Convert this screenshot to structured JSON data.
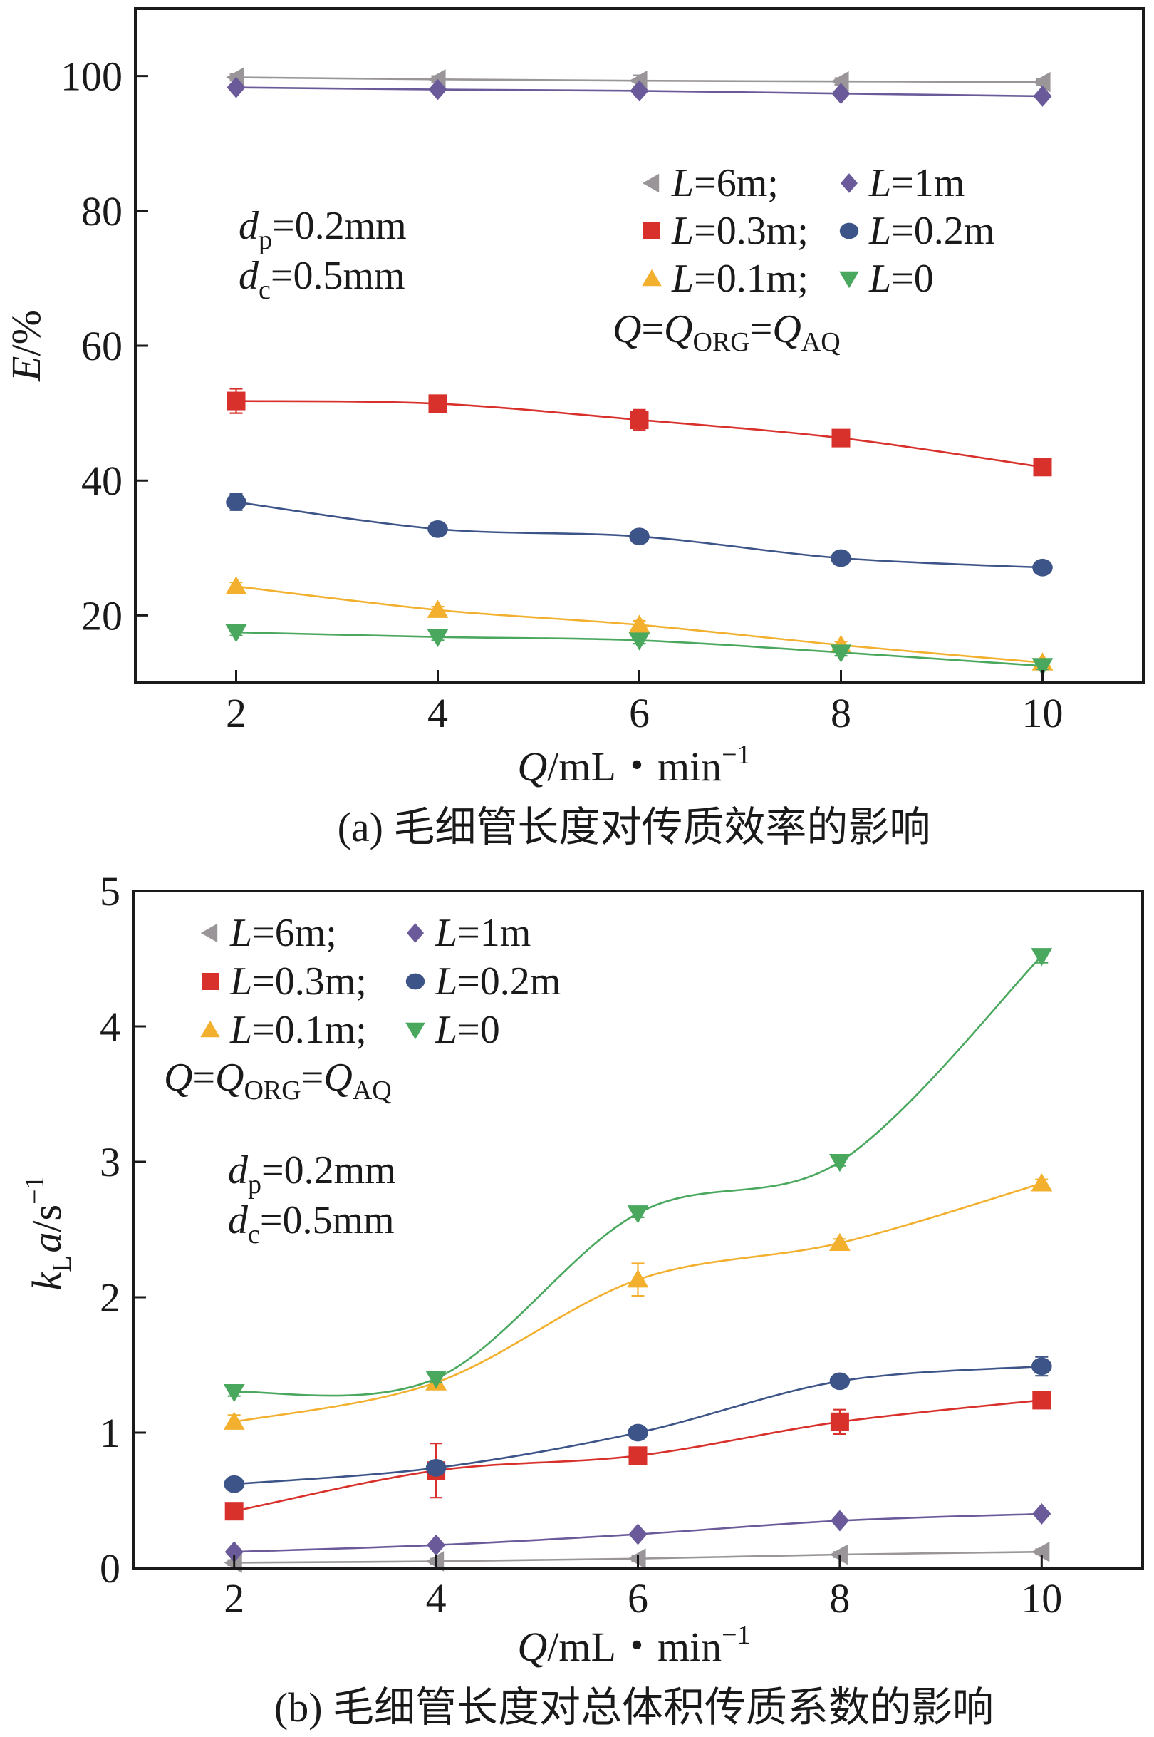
{
  "chart_data": [
    {
      "type": "line",
      "panel": "a",
      "caption": "(a) 毛细管长度对传质效率的影响",
      "xlabel": {
        "var": "Q",
        "unit": "/mL・min",
        "sup": "−1"
      },
      "ylabel": {
        "var": "E",
        "unit": "/%"
      },
      "xlim": [
        1,
        11
      ],
      "ylim": [
        10,
        110
      ],
      "xticks": [
        2,
        4,
        6,
        8,
        10
      ],
      "yticks": [
        20,
        40,
        60,
        80,
        100
      ],
      "x": [
        2,
        4,
        6,
        8,
        10
      ],
      "annotations": {
        "dp": {
          "var": "d",
          "sub": "p",
          "value": "=0.2mm"
        },
        "dc": {
          "var": "d",
          "sub": "c",
          "value": "=0.5mm"
        },
        "flow": {
          "q1": "Q",
          "eq1": "=",
          "q2": "Q",
          "s2": "ORG",
          "eq2": "=",
          "q3": "Q",
          "s3": "AQ"
        }
      },
      "series": [
        {
          "name": "L=6m",
          "var": "L",
          "value": "=6m",
          "sep": ";",
          "marker": "triangle-left",
          "color": "#9a9598",
          "values": [
            99.8,
            99.5,
            99.3,
            99.2,
            99.1
          ],
          "err": [
            0.5,
            0.5,
            0.8,
            0.5,
            0.5
          ]
        },
        {
          "name": "L=1m",
          "var": "L",
          "value": "=1m",
          "sep": "",
          "marker": "diamond",
          "color": "#6b5a9a",
          "values": [
            98.3,
            98.0,
            97.8,
            97.4,
            97.0
          ],
          "err": [
            0.4,
            0.4,
            0.4,
            0.4,
            0.4
          ]
        },
        {
          "name": "L=0.3m",
          "var": "L",
          "value": "=0.3m",
          "sep": ";",
          "marker": "square",
          "color": "#d8302b",
          "values": [
            51.8,
            51.4,
            49.0,
            46.3,
            42.0
          ],
          "err": [
            1.8,
            0.5,
            1.5,
            0.5,
            0.5
          ]
        },
        {
          "name": "L=0.2m",
          "var": "L",
          "value": "=0.2m",
          "sep": "",
          "marker": "circle",
          "color": "#3d5488",
          "values": [
            36.8,
            32.8,
            31.7,
            28.5,
            27.1
          ],
          "err": [
            1.2,
            0.5,
            0.5,
            0.5,
            0.5
          ]
        },
        {
          "name": "L=0.1m",
          "var": "L",
          "value": "=0.1m",
          "sep": ";",
          "marker": "triangle-up",
          "color": "#f2b02e",
          "values": [
            24.3,
            20.8,
            18.6,
            15.6,
            13.0
          ],
          "err": [
            0.6,
            0.5,
            0.6,
            0.5,
            0.5
          ]
        },
        {
          "name": "L=0",
          "var": "L",
          "value": "=0",
          "sep": "",
          "marker": "triangle-down",
          "color": "#4aa85e",
          "values": [
            17.5,
            16.8,
            16.3,
            14.5,
            12.5
          ],
          "err": [
            0.5,
            0.5,
            0.5,
            0.5,
            0.5
          ]
        }
      ]
    },
    {
      "type": "line",
      "panel": "b",
      "caption": "(b) 毛细管长度对总体积传质系数的影响",
      "xlabel": {
        "var": "Q",
        "unit": "/mL・min",
        "sup": "−1"
      },
      "ylabel": {
        "var1": "k",
        "sub": "L",
        "var2": "a",
        "unit": "/s",
        "sup": "−1"
      },
      "xlim": [
        1,
        11
      ],
      "ylim": [
        0,
        5
      ],
      "xticks": [
        2,
        4,
        6,
        8,
        10
      ],
      "yticks": [
        0,
        1,
        2,
        3,
        4,
        5
      ],
      "x": [
        2,
        4,
        6,
        8,
        10
      ],
      "annotations": {
        "dp": {
          "var": "d",
          "sub": "p",
          "value": "=0.2mm"
        },
        "dc": {
          "var": "d",
          "sub": "c",
          "value": "=0.5mm"
        },
        "flow": {
          "q1": "Q",
          "eq1": "=",
          "q2": "Q",
          "s2": "ORG",
          "eq2": "=",
          "q3": "Q",
          "s3": "AQ"
        }
      },
      "series": [
        {
          "name": "L=6m",
          "var": "L",
          "value": "=6m",
          "sep": ";",
          "marker": "triangle-left",
          "color": "#9a9598",
          "values": [
            0.04,
            0.05,
            0.07,
            0.1,
            0.12
          ],
          "err": [
            0.02,
            0.02,
            0.02,
            0.02,
            0.02
          ]
        },
        {
          "name": "L=1m",
          "var": "L",
          "value": "=1m",
          "sep": "",
          "marker": "diamond",
          "color": "#6b5a9a",
          "values": [
            0.12,
            0.17,
            0.25,
            0.35,
            0.4
          ],
          "err": [
            0.02,
            0.02,
            0.02,
            0.02,
            0.02
          ]
        },
        {
          "name": "L=0.3m",
          "var": "L",
          "value": "=0.3m",
          "sep": ";",
          "marker": "square",
          "color": "#d8302b",
          "values": [
            0.42,
            0.72,
            0.83,
            1.08,
            1.24
          ],
          "err": [
            0.02,
            0.2,
            0.04,
            0.09,
            0.03
          ]
        },
        {
          "name": "L=0.2m",
          "var": "L",
          "value": "=0.2m",
          "sep": "",
          "marker": "circle",
          "color": "#3d5488",
          "values": [
            0.62,
            0.74,
            1.0,
            1.38,
            1.49
          ],
          "err": [
            0.02,
            0.04,
            0.03,
            0.04,
            0.07
          ]
        },
        {
          "name": "L=0.1m",
          "var": "L",
          "value": "=0.1m",
          "sep": ";",
          "marker": "triangle-up",
          "color": "#f2b02e",
          "values": [
            1.08,
            1.37,
            2.13,
            2.4,
            2.84
          ],
          "err": [
            0.05,
            0.04,
            0.12,
            0.03,
            0.03
          ]
        },
        {
          "name": "L=0",
          "var": "L",
          "value": "=0",
          "sep": "",
          "marker": "triangle-down",
          "color": "#4aa85e",
          "values": [
            1.3,
            1.4,
            2.62,
            3.0,
            4.52
          ],
          "err": [
            0.03,
            0.03,
            0.03,
            0.03,
            0.05
          ]
        }
      ]
    }
  ]
}
